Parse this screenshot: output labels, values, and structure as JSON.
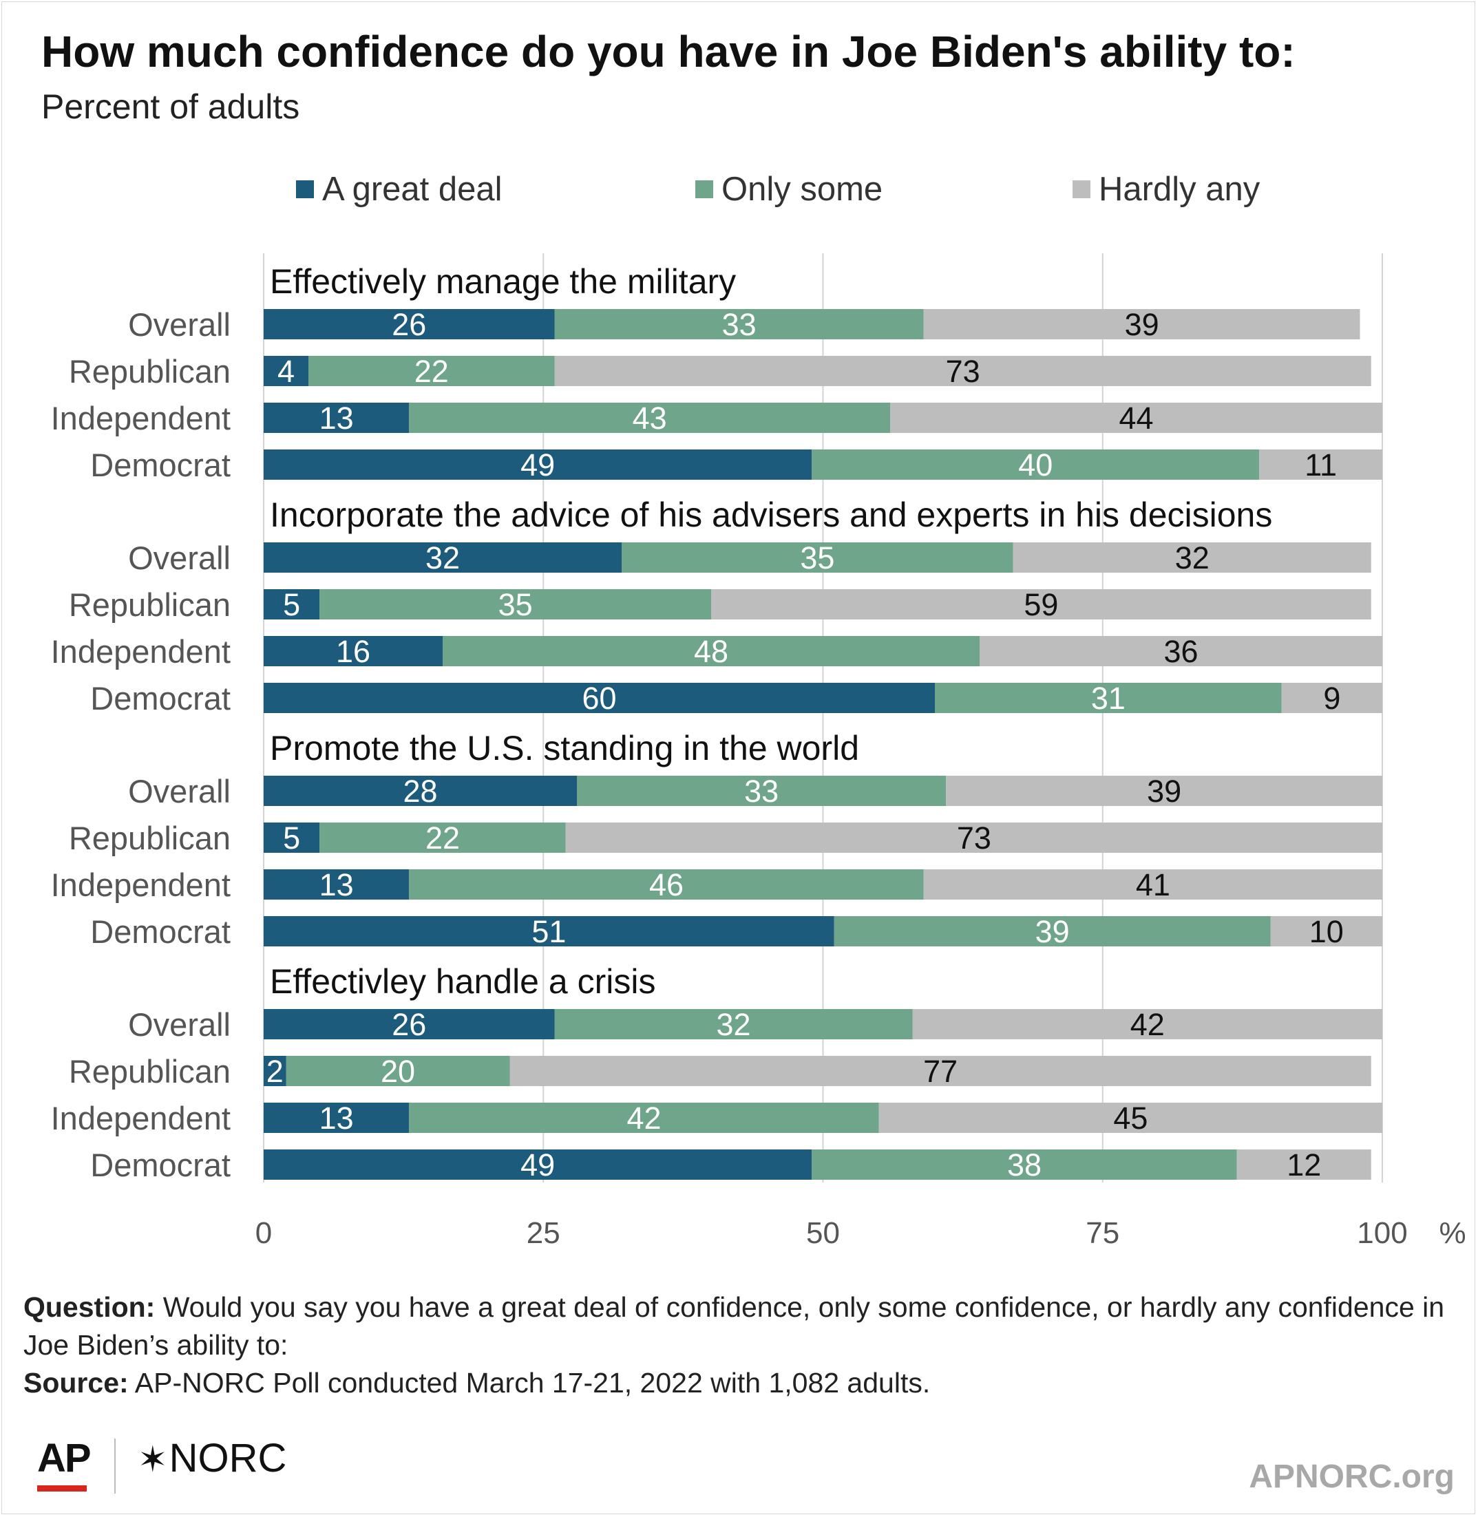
{
  "header": {
    "title": "How much confidence do you have in Joe Biden's ability to:",
    "subtitle": "Percent of adults"
  },
  "legend": [
    {
      "label": "A great deal",
      "color": "#1c5b7c"
    },
    {
      "label": "Only some",
      "color": "#6fa58a"
    },
    {
      "label": "Hardly any",
      "color": "#bdbdbd"
    }
  ],
  "chart_data": {
    "type": "bar",
    "orientation": "horizontal",
    "stacked": true,
    "xlim": [
      0,
      100
    ],
    "xticks": [
      "0",
      "25",
      "50",
      "75",
      "100"
    ],
    "xunit": "%",
    "grid": true,
    "legend_position": "top",
    "series_names": [
      "A great deal",
      "Only some",
      "Hardly any"
    ],
    "colors": [
      "#1c5b7c",
      "#6fa58a",
      "#bdbdbd"
    ],
    "groups": [
      {
        "title": "Effectively manage the military",
        "rows": [
          {
            "label": "Overall",
            "values": [
              26,
              33,
              39
            ]
          },
          {
            "label": "Republican",
            "values": [
              4,
              22,
              73
            ]
          },
          {
            "label": "Independent",
            "values": [
              13,
              43,
              44
            ]
          },
          {
            "label": "Democrat",
            "values": [
              49,
              40,
              11
            ]
          }
        ]
      },
      {
        "title": "Incorporate the advice of his advisers and experts in his decisions",
        "rows": [
          {
            "label": "Overall",
            "values": [
              32,
              35,
              32
            ]
          },
          {
            "label": "Republican",
            "values": [
              5,
              35,
              59
            ]
          },
          {
            "label": "Independent",
            "values": [
              16,
              48,
              36
            ]
          },
          {
            "label": "Democrat",
            "values": [
              60,
              31,
              9
            ]
          }
        ]
      },
      {
        "title": "Promote the U.S. standing in the world",
        "rows": [
          {
            "label": "Overall",
            "values": [
              28,
              33,
              39
            ]
          },
          {
            "label": "Republican",
            "values": [
              5,
              22,
              73
            ]
          },
          {
            "label": "Independent",
            "values": [
              13,
              46,
              41
            ]
          },
          {
            "label": "Democrat",
            "values": [
              51,
              39,
              10
            ]
          }
        ]
      },
      {
        "title": "Effectivley handle a crisis",
        "rows": [
          {
            "label": "Overall",
            "values": [
              26,
              32,
              42
            ]
          },
          {
            "label": "Republican",
            "values": [
              2,
              20,
              77
            ]
          },
          {
            "label": "Independent",
            "values": [
              13,
              42,
              45
            ]
          },
          {
            "label": "Democrat",
            "values": [
              49,
              38,
              12
            ]
          }
        ]
      }
    ]
  },
  "notes": {
    "question_label": "Question:",
    "question_text": " Would you say you have a great deal of confidence, only some confidence, or hardly any confidence in Joe Biden’s ability to:",
    "source_label": "Source:",
    "source_text": " AP-NORC Poll conducted March 17-21, 2022 with 1,082 adults."
  },
  "footer": {
    "logo_ap": "AP",
    "logo_norc": "NORC",
    "site": "APNORC.org"
  }
}
